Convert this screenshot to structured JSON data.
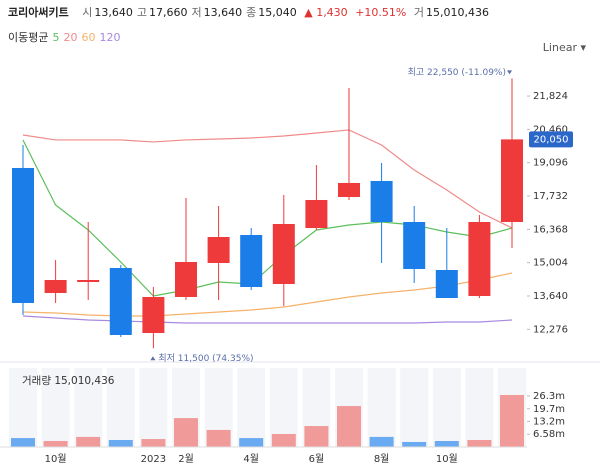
{
  "header": {
    "name": "코리아써키트",
    "items": [
      {
        "label": "시",
        "value": "13,640"
      },
      {
        "label": "고",
        "value": "17,660"
      },
      {
        "label": "저",
        "value": "13,640"
      },
      {
        "label": "종",
        "value": "15,040"
      }
    ],
    "change": "▲ 1,430",
    "change_pct": "+10.51%",
    "volume_label": "거",
    "volume_value": "15,010,436",
    "legend_title": "이동평균",
    "scale_label": "Linear"
  },
  "chart_data": [
    {
      "type": "candlestick",
      "open": [
        18880,
        13763,
        14213,
        14786,
        12125,
        13599,
        14991,
        16137,
        14131,
        16423,
        17692,
        18348,
        16669,
        14704,
        13640,
        16669
      ],
      "high": [
        19821,
        15114,
        16669,
        14909,
        14008,
        17651,
        17324,
        16423,
        17774,
        19002,
        22154,
        19084,
        17324,
        16423,
        16955,
        22550
      ],
      "low": [
        12862,
        13353,
        13476,
        11962,
        11500,
        13476,
        13476,
        13886,
        13231,
        16342,
        17570,
        14991,
        14172,
        13558,
        13558,
        15605
      ],
      "close": [
        13353,
        14295,
        14295,
        12044,
        13599,
        15032,
        16055,
        14008,
        16587,
        17570,
        18266,
        16669,
        14745,
        13558,
        16669,
        20050
      ],
      "up_color": "#ee3a3a",
      "down_color": "#1a7de8",
      "series": [
        {
          "name": "5",
          "color": "#5cbf5c",
          "values": [
            20027,
            17366,
            16342,
            15032,
            13640,
            13886,
            14213,
            14131,
            15319,
            16342,
            16547,
            16669,
            16547,
            16260,
            16055,
            16423
          ]
        },
        {
          "name": "20",
          "color": "#f08a8a",
          "values": [
            20231,
            20027,
            20027,
            20027,
            19945,
            20027,
            20067,
            20108,
            20190,
            20313,
            20436,
            19822,
            18798,
            17980,
            17079,
            16423
          ]
        },
        {
          "name": "60",
          "color": "#f5b26b",
          "values": [
            12985,
            12944,
            12862,
            12821,
            12821,
            12903,
            12985,
            13067,
            13190,
            13394,
            13599,
            13763,
            13886,
            14049,
            14295,
            14582
          ]
        },
        {
          "name": "120",
          "color": "#a889e0",
          "values": [
            12821,
            12739,
            12657,
            12616,
            12575,
            12534,
            12534,
            12534,
            12534,
            12534,
            12534,
            12534,
            12534,
            12575,
            12575,
            12657
          ]
        }
      ],
      "ylim": [
        11020,
        23218
      ],
      "yticks": [
        {
          "value": 12276,
          "label": "12,276"
        },
        {
          "value": 13640,
          "label": "13,640"
        },
        {
          "value": 15004,
          "label": "15,004"
        },
        {
          "value": 16368,
          "label": "16,368"
        },
        {
          "value": 17732,
          "label": "17,732"
        },
        {
          "value": 19096,
          "label": "19,096"
        },
        {
          "value": 20460,
          "label": "20,460"
        },
        {
          "value": 21824,
          "label": "21,824"
        }
      ],
      "max_label": "최고 22,550 (-11.09%)",
      "min_label": "최저 11,500 (74.35%)",
      "last_label": "20,050"
    },
    {
      "type": "bar",
      "title": "거래량 15,010,436",
      "categories": [
        null,
        "10월",
        null,
        null,
        "2023",
        "2월",
        null,
        "4월",
        null,
        "6월",
        null,
        "8월",
        null,
        "10월",
        null,
        null
      ],
      "values": [
        4600000,
        3100000,
        5200000,
        3600000,
        4100000,
        14900000,
        8800000,
        4600000,
        6700000,
        10800000,
        21100000,
        5200000,
        2600000,
        3100000,
        3600000,
        26800000
      ],
      "colors": [
        "#6aaaf0",
        "#f09a9a",
        "#f09a9a",
        "#6aaaf0",
        "#f09a9a",
        "#f09a9a",
        "#f09a9a",
        "#6aaaf0",
        "#f09a9a",
        "#f09a9a",
        "#f09a9a",
        "#6aaaf0",
        "#6aaaf0",
        "#6aaaf0",
        "#f09a9a",
        "#f09a9a"
      ],
      "ylim": [
        0,
        40700000
      ],
      "yticks": [
        {
          "value": 6580000,
          "label": "6.58m"
        },
        {
          "value": 13200000,
          "label": "13.2m"
        },
        {
          "value": 19700000,
          "label": "19.7m"
        },
        {
          "value": 26300000,
          "label": "26.3m"
        }
      ]
    }
  ]
}
